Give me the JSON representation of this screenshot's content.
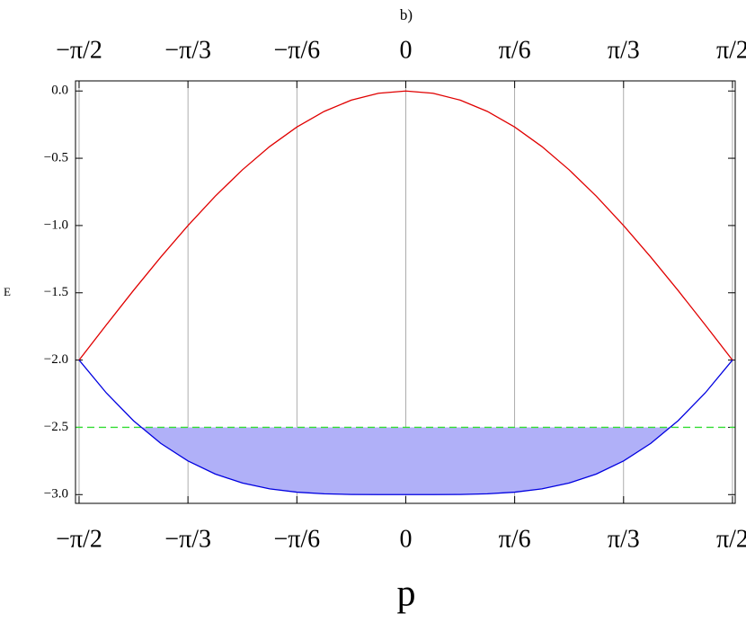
{
  "chart_data": {
    "type": "line",
    "title": "b)",
    "xlabel": "p",
    "ylabel": "E",
    "x": [
      -1.5708,
      -1.4399,
      -1.309,
      -1.1781,
      -1.0472,
      -0.9163,
      -0.7854,
      -0.6545,
      -0.5236,
      -0.3927,
      -0.2618,
      -0.1309,
      0,
      0.1309,
      0.2618,
      0.3927,
      0.5236,
      0.6545,
      0.7854,
      0.9163,
      1.0472,
      1.1781,
      1.309,
      1.4399,
      1.5708
    ],
    "series": [
      {
        "color": "#e00000",
        "values": [
          -2,
          -1.739,
          -1.482,
          -1.235,
          -1,
          -0.782,
          -0.586,
          -0.413,
          -0.268,
          -0.152,
          -0.068,
          -0.017,
          0,
          -0.017,
          -0.068,
          -0.152,
          -0.268,
          -0.413,
          -0.586,
          -0.782,
          -1,
          -1.235,
          -1.482,
          -1.739,
          -2
        ]
      },
      {
        "color": "#0000e0",
        "fill": "#b0b0f8",
        "values": [
          -2,
          -2.244,
          -2.451,
          -2.619,
          -2.75,
          -2.847,
          -2.914,
          -2.957,
          -2.982,
          -2.994,
          -2.999,
          -3.0,
          -3,
          -3.0,
          -2.999,
          -2.994,
          -2.982,
          -2.957,
          -2.914,
          -2.847,
          -2.75,
          -2.619,
          -2.451,
          -2.244,
          -2
        ]
      }
    ],
    "hline": {
      "value": -2.5,
      "color": "#33dd33"
    },
    "xlim": [
      -1.588,
      1.584
    ],
    "ylim": [
      -3.065,
      0.075
    ],
    "xticks": [
      {
        "value": -1.5708,
        "label": "−π/2"
      },
      {
        "value": -1.0472,
        "label": "−π/3"
      },
      {
        "value": -0.5236,
        "label": "−π/6"
      },
      0,
      {
        "value": 0.5236,
        "label": "π/6"
      },
      {
        "value": 1.0472,
        "label": "π/3"
      },
      {
        "value": 1.5708,
        "label": "π/2"
      }
    ],
    "yticks": [
      {
        "value": 0,
        "label": "0.0"
      },
      {
        "value": -0.5,
        "label": "−0.5"
      },
      {
        "value": -1,
        "label": "−1.0"
      },
      {
        "value": -1.5,
        "label": "−1.5"
      },
      {
        "value": -2,
        "label": "−2.0"
      },
      {
        "value": -2.5,
        "label": "−2.5"
      },
      {
        "value": -3,
        "label": "−3.0"
      }
    ],
    "grid": "x"
  }
}
